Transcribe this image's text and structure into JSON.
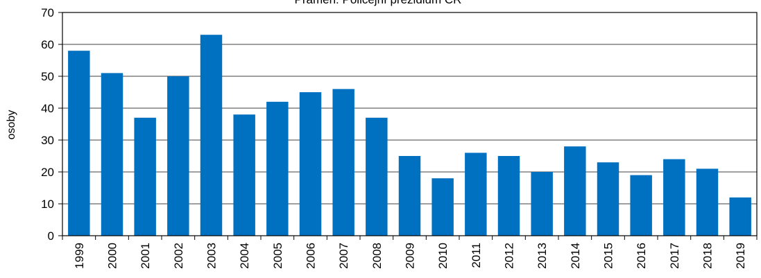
{
  "chart_data": {
    "type": "bar",
    "title": "Pramen: Policejní prezidium ČR",
    "xlabel": "",
    "ylabel": "osoby",
    "categories": [
      "1999",
      "2000",
      "2001",
      "2002",
      "2003",
      "2004",
      "2005",
      "2006",
      "2007",
      "2008",
      "2009",
      "2010",
      "2011",
      "2012",
      "2013",
      "2014",
      "2015",
      "2016",
      "2017",
      "2018",
      "2019"
    ],
    "values": [
      58,
      51,
      37,
      50,
      63,
      38,
      42,
      45,
      46,
      37,
      25,
      18,
      26,
      25,
      20,
      28,
      23,
      19,
      24,
      21,
      12
    ],
    "ylim": [
      0,
      70
    ],
    "yticks": [
      0,
      10,
      20,
      30,
      40,
      50,
      60,
      70
    ],
    "grid": true,
    "legend": "none",
    "bar_color": "#0070C0"
  }
}
